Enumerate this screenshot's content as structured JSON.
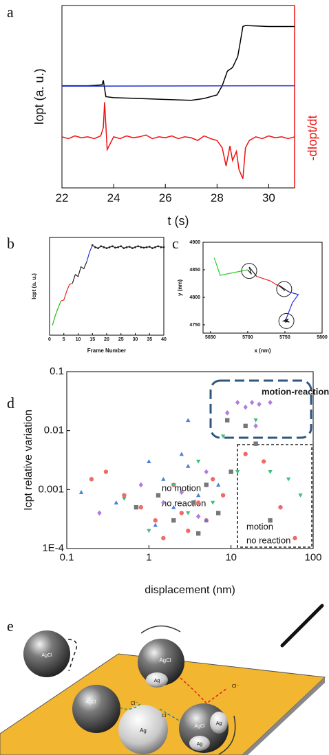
{
  "chart_data": [
    {
      "type": "line",
      "panel": "a",
      "x_label": "t (s)",
      "y_label": "Iopt (a. u.)",
      "y2_label": "-dIopt/dt",
      "xlim": [
        22,
        31
      ],
      "xticks": [
        22,
        24,
        26,
        28,
        30
      ],
      "ylim": [
        0,
        10
      ],
      "y2lim": [
        0,
        10
      ],
      "series": [
        {
          "color": "#000000",
          "x": [
            22,
            23,
            23.55,
            23.6,
            23.7,
            24,
            25,
            26,
            27,
            27.5,
            28,
            28.2,
            28.4,
            28.6,
            28.8,
            28.9,
            29,
            29.1,
            30,
            31
          ],
          "values": [
            5.6,
            5.6,
            5.65,
            5.9,
            5.0,
            4.95,
            4.9,
            4.85,
            4.8,
            4.9,
            5.1,
            5.6,
            6.4,
            6.6,
            7.2,
            8.0,
            8.85,
            8.9,
            8.85,
            8.85
          ]
        },
        {
          "color": "#1f2fd0",
          "x": [
            22,
            31
          ],
          "values": [
            5.58,
            5.6
          ]
        },
        {
          "color": "#ee1111",
          "axis": "y2",
          "x": [
            22,
            22.25,
            22.5,
            22.75,
            23,
            23.25,
            23.5,
            23.6,
            23.65,
            23.75,
            24,
            24.25,
            24.5,
            24.75,
            25,
            25.25,
            25.5,
            25.75,
            26,
            26.25,
            26.5,
            26.75,
            27,
            27.25,
            27.5,
            27.75,
            28,
            28.2,
            28.35,
            28.5,
            28.6,
            28.75,
            28.85,
            29,
            29.1,
            29.25,
            29.5,
            29.75,
            30,
            30.25,
            30.5,
            30.75,
            31
          ],
          "values": [
            2.8,
            2.7,
            2.85,
            2.75,
            2.8,
            2.7,
            2.85,
            3.3,
            4.7,
            2.1,
            2.8,
            2.7,
            2.85,
            2.75,
            2.8,
            2.9,
            2.7,
            2.8,
            2.75,
            2.85,
            2.7,
            2.8,
            2.75,
            2.6,
            2.85,
            2.7,
            2.6,
            2.2,
            1.2,
            2.3,
            1.5,
            2.0,
            1.0,
            0.5,
            2.2,
            2.6,
            2.8,
            2.7,
            2.85,
            2.75,
            2.8,
            2.7,
            2.8
          ]
        }
      ]
    },
    {
      "type": "line",
      "panel": "b",
      "x_label": "Frame Number",
      "y_label": "Icpt (a. u.)",
      "xlim": [
        0,
        40
      ],
      "xticks": [
        0,
        5,
        10,
        15,
        20,
        25,
        30,
        35,
        40
      ],
      "ylim": [
        0,
        10
      ],
      "series": [
        {
          "color": "#22bb22",
          "x": [
            1,
            2,
            3,
            4
          ],
          "values": [
            1.0,
            2.0,
            2.8,
            3.5
          ]
        },
        {
          "color": "#ee2222",
          "x": [
            4,
            5,
            6,
            7,
            8
          ],
          "values": [
            3.5,
            3.6,
            4.5,
            5.2,
            5.3
          ]
        },
        {
          "color": "#222222",
          "x": [
            8,
            9,
            10,
            11,
            12,
            13
          ],
          "values": [
            5.3,
            6.2,
            6.0,
            7.0,
            6.8,
            7.5
          ]
        },
        {
          "color": "#2233dd",
          "x": [
            13,
            14,
            15
          ],
          "values": [
            7.5,
            8.5,
            9.2
          ]
        },
        {
          "color": "#222222",
          "marker": "circle",
          "x": [
            15,
            16,
            17,
            18,
            19,
            20,
            21,
            22,
            23,
            24,
            25,
            26,
            27,
            28,
            29,
            30,
            31,
            32,
            33,
            34,
            35,
            36,
            37,
            38,
            39,
            40
          ],
          "values": [
            9.2,
            9.0,
            8.9,
            9.1,
            9.0,
            8.9,
            9.0,
            9.1,
            8.95,
            9.0,
            9.1,
            8.9,
            9.0,
            9.05,
            8.9,
            9.0,
            9.1,
            9.0,
            8.95,
            9.0,
            9.05,
            8.9,
            9.0,
            9.1,
            9.0,
            9.0
          ]
        }
      ]
    },
    {
      "type": "line",
      "panel": "c",
      "x_label": "x (nm)",
      "y_label": "y (nm)",
      "xlim": [
        5640,
        5800
      ],
      "xticks": [
        5650,
        5700,
        5750,
        5800
      ],
      "ylim": [
        4735,
        4900
      ],
      "yticks": [
        4750,
        4800,
        4850,
        4900
      ],
      "series": [
        {
          "color": "#33cc33",
          "x": [
            5655,
            5663,
            5700
          ],
          "values": [
            4872,
            4840,
            4850
          ]
        },
        {
          "color": "#222222",
          "x": [
            5700,
            5705,
            5702,
            5708,
            5712
          ],
          "values": [
            4850,
            4842,
            4855,
            4845,
            4838
          ]
        },
        {
          "color": "#ee2222",
          "x": [
            5712,
            5730,
            5745
          ],
          "values": [
            4838,
            4830,
            4818
          ]
        },
        {
          "color": "#222222",
          "x": [
            5745,
            5750,
            5742,
            5755
          ],
          "values": [
            4818,
            4812,
            4822,
            4810
          ]
        },
        {
          "color": "#2233dd",
          "x": [
            5755,
            5768,
            5760,
            5752
          ],
          "values": [
            4810,
            4805,
            4790,
            4762
          ]
        },
        {
          "color": "#111111",
          "x": [
            5752,
            5750,
            5756,
            5748,
            5754,
            5751
          ],
          "values": [
            4762,
            4758,
            4755,
            4757,
            4760,
            4754
          ]
        }
      ]
    },
    {
      "type": "scatter",
      "panel": "d",
      "x_label": "displacement (nm)",
      "y_label": "Icpt relative variation",
      "log_x": true,
      "log_y": true,
      "xlim": [
        0.1,
        100
      ],
      "xticks": [
        0.1,
        1,
        10,
        100
      ],
      "ylim": [
        0.0001,
        0.1
      ],
      "yticks": [
        {
          "value": 0.0001,
          "label": "1E-4"
        },
        0.001,
        0.01,
        0.1
      ],
      "annotations": [
        "motion-reaction",
        "no motion",
        "no reaction",
        "motion",
        "no reaction"
      ],
      "series": [
        {
          "color": "#f06a6a",
          "marker": "circle",
          "x": [
            0.3,
            0.5,
            0.8,
            1.2,
            1.5,
            2,
            2.5,
            3,
            4,
            5,
            6,
            8,
            15,
            25,
            40,
            60,
            0.2
          ],
          "values": [
            0.002,
            0.0008,
            0.0005,
            0.0003,
            0.00015,
            0.0012,
            0.0004,
            0.0002,
            0.0006,
            0.0003,
            0.0015,
            0.0008,
            0.004,
            0.003,
            0.0005,
            0.00015,
            0.0015
          ]
        },
        {
          "color": "#4a7fd9",
          "marker": "triangle",
          "x": [
            0.15,
            0.4,
            1,
            1.5,
            2,
            3,
            3,
            4,
            5,
            7,
            1.2,
            2.5
          ],
          "values": [
            0.0009,
            0.0006,
            0.003,
            0.0015,
            0.0005,
            0.015,
            0.0025,
            0.0008,
            0.0003,
            0.0012,
            0.00025,
            0.004
          ]
        },
        {
          "color": "#3fbf7f",
          "marker": "down-triangle",
          "x": [
            0.5,
            1,
            2,
            3,
            4,
            6,
            8,
            12,
            20,
            30,
            50,
            70
          ],
          "values": [
            0.0007,
            0.0002,
            0.0012,
            0.0004,
            0.003,
            0.0006,
            0.008,
            0.002,
            0.015,
            0.002,
            0.0015,
            0.0008
          ]
        },
        {
          "color": "#b07ddf",
          "marker": "diamond",
          "x": [
            0.25,
            0.8,
            1.5,
            2.5,
            4,
            5,
            12,
            15,
            18,
            22,
            30,
            20,
            9
          ],
          "values": [
            0.0004,
            0.0012,
            0.0006,
            0.0009,
            0.00035,
            0.002,
            0.03,
            0.025,
            0.03,
            0.028,
            0.03,
            0.012,
            0.02
          ]
        },
        {
          "color": "#777777",
          "marker": "square",
          "x": [
            0.7,
            1.3,
            2,
            3.5,
            5,
            7,
            10,
            15,
            20,
            9,
            30,
            4
          ],
          "values": [
            0.0005,
            0.0008,
            0.0003,
            0.0006,
            0.0012,
            0.0004,
            0.002,
            0.012,
            0.006,
            0.015,
            0.0003,
            0.00018
          ]
        }
      ]
    }
  ],
  "illustration": {
    "panel": "e",
    "labels": [
      "AgCl",
      "AgCl",
      "AgCl",
      "Ag",
      "Cl⁻",
      "Cl⁻",
      "Ag",
      "AgCl",
      "Ag",
      "Ag",
      "Cl⁻"
    ]
  }
}
